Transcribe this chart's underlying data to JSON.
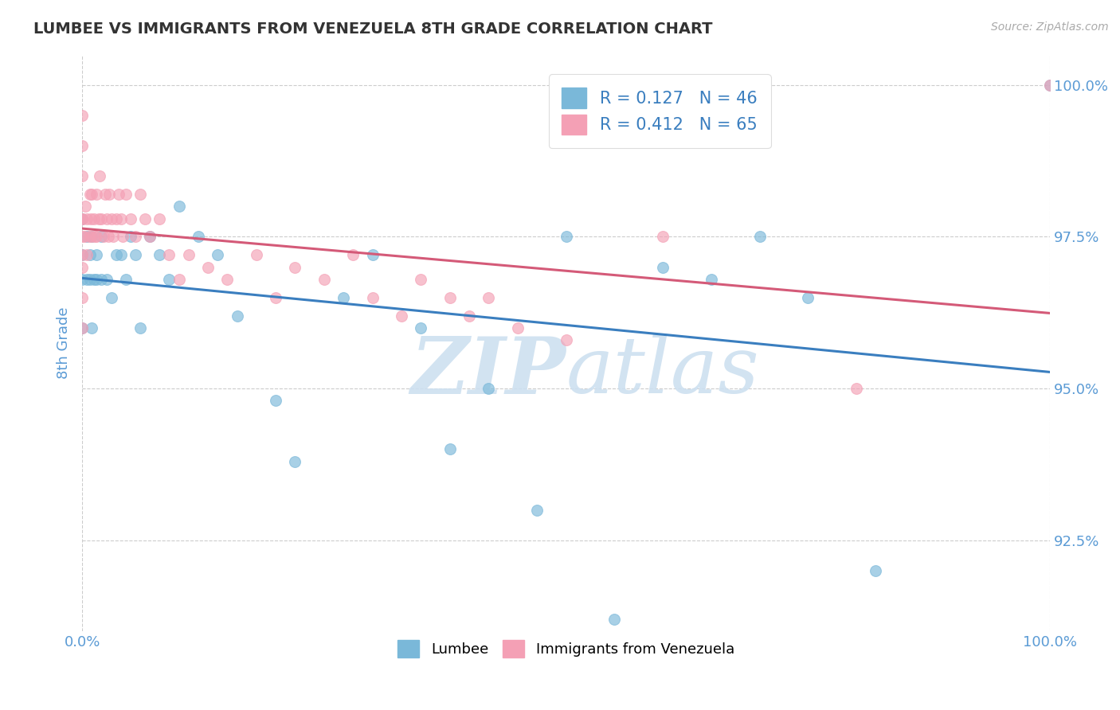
{
  "title": "LUMBEE VS IMMIGRANTS FROM VENEZUELA 8TH GRADE CORRELATION CHART",
  "source_text": "Source: ZipAtlas.com",
  "ylabel": "8th Grade",
  "x_min": 0.0,
  "x_max": 1.0,
  "y_min": 0.91,
  "y_max": 1.005,
  "y_ticks": [
    0.925,
    0.95,
    0.975,
    1.0
  ],
  "y_tick_labels": [
    "92.5%",
    "95.0%",
    "97.5%",
    "100.0%"
  ],
  "x_tick_labels": [
    "0.0%",
    "100.0%"
  ],
  "lumbee_color": "#7ab8d9",
  "venezuela_color": "#f4a0b5",
  "lumbee_line_color": "#3a7ebf",
  "venezuela_line_color": "#d45a78",
  "R_lumbee": 0.127,
  "N_lumbee": 46,
  "R_venezuela": 0.412,
  "N_venezuela": 65,
  "lumbee_scatter_x": [
    0.0,
    0.0,
    0.0,
    0.0,
    0.005,
    0.005,
    0.008,
    0.008,
    0.01,
    0.01,
    0.012,
    0.015,
    0.015,
    0.02,
    0.02,
    0.025,
    0.03,
    0.035,
    0.04,
    0.045,
    0.05,
    0.055,
    0.06,
    0.07,
    0.08,
    0.09,
    0.1,
    0.12,
    0.14,
    0.16,
    0.2,
    0.22,
    0.27,
    0.3,
    0.35,
    0.38,
    0.42,
    0.47,
    0.5,
    0.55,
    0.6,
    0.65,
    0.7,
    0.75,
    0.82,
    1.0
  ],
  "lumbee_scatter_y": [
    0.972,
    0.978,
    0.96,
    0.968,
    0.975,
    0.968,
    0.972,
    0.968,
    0.96,
    0.975,
    0.968,
    0.972,
    0.968,
    0.975,
    0.968,
    0.968,
    0.965,
    0.972,
    0.972,
    0.968,
    0.975,
    0.972,
    0.96,
    0.975,
    0.972,
    0.968,
    0.98,
    0.975,
    0.972,
    0.962,
    0.948,
    0.938,
    0.965,
    0.972,
    0.96,
    0.94,
    0.95,
    0.93,
    0.975,
    0.912,
    0.97,
    0.968,
    0.975,
    0.965,
    0.92,
    1.0
  ],
  "venezuela_scatter_x": [
    0.0,
    0.0,
    0.0,
    0.0,
    0.0,
    0.0,
    0.0,
    0.0,
    0.0,
    0.0,
    0.002,
    0.003,
    0.005,
    0.005,
    0.007,
    0.008,
    0.009,
    0.01,
    0.01,
    0.012,
    0.013,
    0.015,
    0.015,
    0.017,
    0.018,
    0.02,
    0.022,
    0.024,
    0.025,
    0.027,
    0.028,
    0.03,
    0.032,
    0.035,
    0.038,
    0.04,
    0.042,
    0.045,
    0.05,
    0.055,
    0.06,
    0.065,
    0.07,
    0.08,
    0.09,
    0.1,
    0.11,
    0.13,
    0.15,
    0.18,
    0.2,
    0.22,
    0.25,
    0.28,
    0.3,
    0.33,
    0.35,
    0.38,
    0.4,
    0.42,
    0.45,
    0.5,
    0.6,
    0.8,
    1.0
  ],
  "venezuela_scatter_y": [
    0.97,
    0.975,
    0.978,
    0.985,
    0.99,
    0.995,
    0.978,
    0.972,
    0.965,
    0.96,
    0.975,
    0.98,
    0.978,
    0.972,
    0.975,
    0.982,
    0.978,
    0.975,
    0.982,
    0.978,
    0.975,
    0.982,
    0.975,
    0.978,
    0.985,
    0.978,
    0.975,
    0.982,
    0.978,
    0.975,
    0.982,
    0.978,
    0.975,
    0.978,
    0.982,
    0.978,
    0.975,
    0.982,
    0.978,
    0.975,
    0.982,
    0.978,
    0.975,
    0.978,
    0.972,
    0.968,
    0.972,
    0.97,
    0.968,
    0.972,
    0.965,
    0.97,
    0.968,
    0.972,
    0.965,
    0.962,
    0.968,
    0.965,
    0.962,
    0.965,
    0.96,
    0.958,
    0.975,
    0.95,
    1.0
  ],
  "background_color": "#ffffff",
  "grid_color": "#cccccc",
  "title_color": "#333333",
  "axis_label_color": "#5b9bd5",
  "tick_color": "#5b9bd5",
  "watermark_color": "#cde0f0",
  "legend_text_color": "#3a7ebf"
}
